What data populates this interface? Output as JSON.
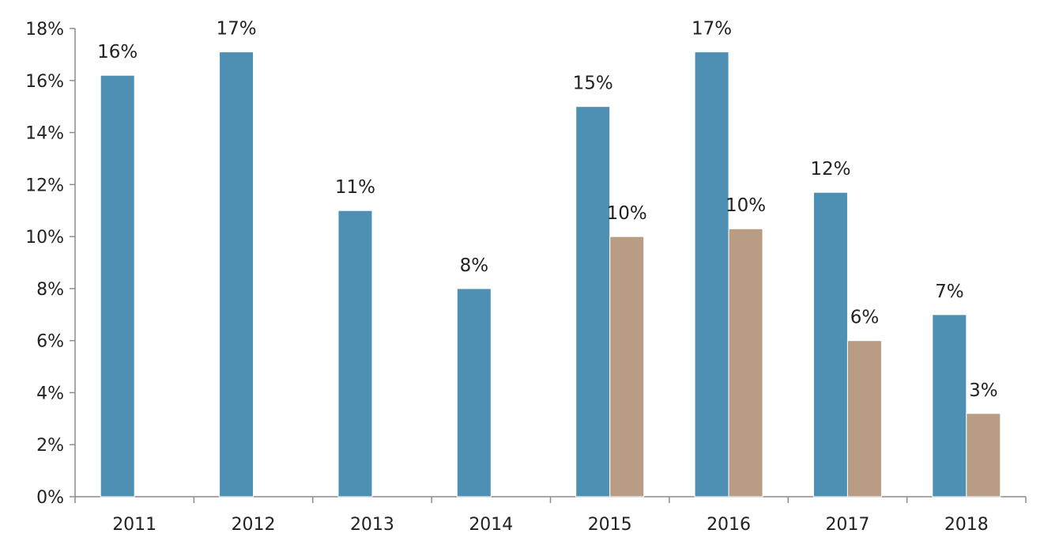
{
  "chart_data": {
    "type": "bar",
    "title": "",
    "xlabel": "",
    "ylabel": "",
    "categories": [
      "2011",
      "2012",
      "2013",
      "2014",
      "2015",
      "2016",
      "2017",
      "2018"
    ],
    "series": [
      {
        "color": "#4d90b4",
        "values": [
          16.2,
          17.1,
          11.0,
          8.0,
          15.0,
          17.1,
          11.7,
          7.0
        ],
        "labels": [
          "16%",
          "17%",
          "11%",
          "8%",
          "15%",
          "17%",
          "12%",
          "7%"
        ]
      },
      {
        "color": "#b89c84",
        "values": [
          null,
          null,
          null,
          null,
          10.0,
          10.3,
          6.0,
          3.2
        ],
        "labels": [
          "",
          "",
          "",
          "",
          "10%",
          "10%",
          "6%",
          "3%"
        ]
      }
    ],
    "ylim": [
      0,
      18
    ],
    "yticks": [
      0,
      2,
      4,
      6,
      8,
      10,
      12,
      14,
      16,
      18
    ],
    "ytick_labels": [
      "0%",
      "2%",
      "4%",
      "6%",
      "8%",
      "10%",
      "12%",
      "14%",
      "16%",
      "18%"
    ],
    "grid": false,
    "legend": "none"
  }
}
